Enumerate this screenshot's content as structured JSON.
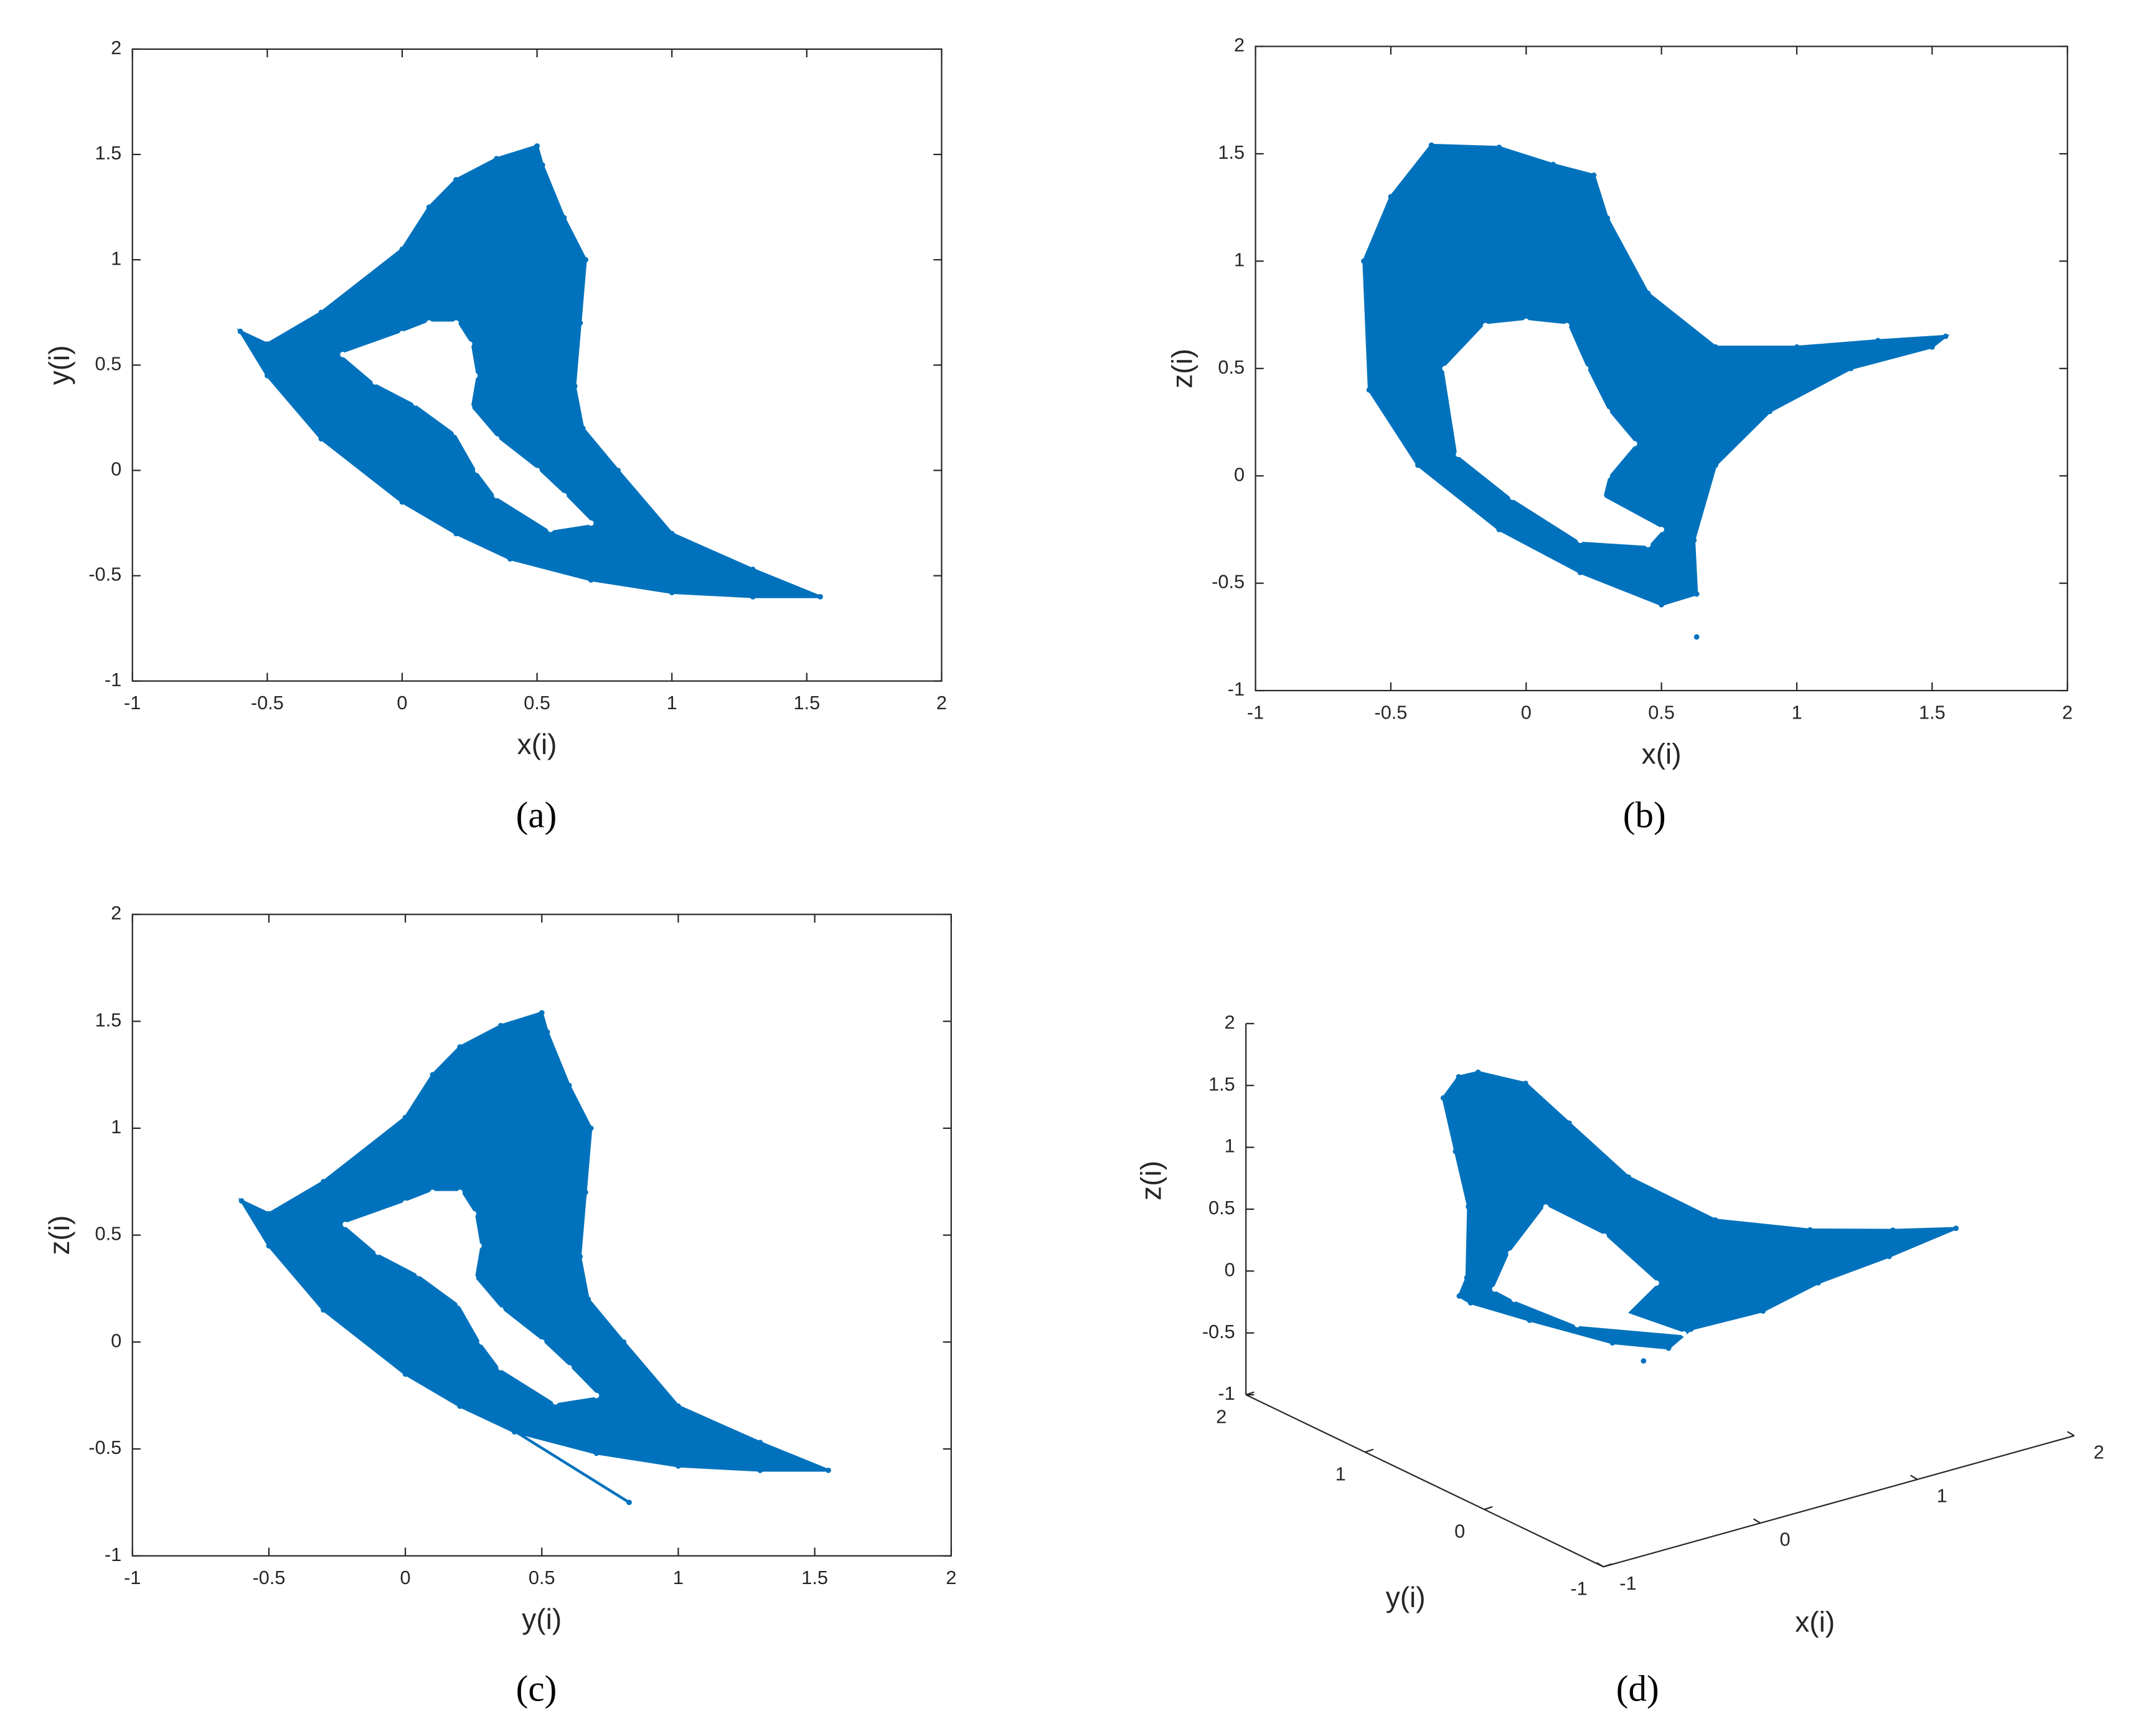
{
  "chart_data": [
    {
      "type": "scatter",
      "caption": "(a)",
      "xlabel": "x(i)",
      "ylabel": "y(i)",
      "xlim": [
        -1,
        2
      ],
      "ylim": [
        -1,
        2
      ],
      "xticks": [
        -1,
        -0.5,
        0,
        0.5,
        1,
        1.5,
        2
      ],
      "yticks": [
        -1,
        -0.5,
        0,
        0.5,
        1,
        1.5,
        2
      ],
      "series": [
        {
          "color": "#0072bd",
          "x": [
            -0.6,
            -0.5,
            -0.3,
            0,
            0.1,
            0.2,
            0.35,
            0.5,
            0.52,
            0.6,
            0.68,
            0.66,
            0.64,
            0.67,
            0.8,
            1.0,
            1.3,
            1.55,
            1.3,
            1.0,
            0.7,
            0.4,
            0.2,
            0,
            -0.3,
            -0.5
          ],
          "y": [
            0.66,
            0.6,
            0.75,
            1.05,
            1.25,
            1.38,
            1.48,
            1.54,
            1.45,
            1.2,
            1.0,
            0.7,
            0.4,
            0.2,
            0,
            -0.3,
            -0.47,
            -0.6,
            -0.6,
            -0.58,
            -0.52,
            -0.42,
            -0.3,
            -0.15,
            0.15,
            0.45
          ]
        },
        {
          "color": "#ffffff",
          "x": [
            -0.22,
            0,
            0.1,
            0.2,
            0.25,
            0.27,
            0.25,
            0.35,
            0.5,
            0.6,
            0.7,
            0.55,
            0.35,
            0.28,
            0.2,
            0.05,
            -0.1
          ],
          "y": [
            0.55,
            0.65,
            0.7,
            0.7,
            0.6,
            0.45,
            0.3,
            0.15,
            0,
            -0.12,
            -0.25,
            -0.28,
            -0.12,
            0,
            0.18,
            0.32,
            0.42
          ]
        },
        {
          "color": "#0072bd",
          "x": [
            0.09
          ],
          "y": [
            -0.17
          ]
        }
      ]
    },
    {
      "type": "scatter",
      "caption": "(b)",
      "xlabel": "x(i)",
      "ylabel": "z(i)",
      "xlim": [
        -1,
        2
      ],
      "ylim": [
        -1,
        2
      ],
      "xticks": [
        -1,
        -0.5,
        0,
        0.5,
        1,
        1.5,
        2
      ],
      "yticks": [
        -1,
        -0.5,
        0,
        0.5,
        1,
        1.5,
        2
      ],
      "series": [
        {
          "color": "#0072bd",
          "x": [
            -0.6,
            -0.5,
            -0.35,
            -0.1,
            0.1,
            0.25,
            0.3,
            0.45,
            0.7,
            1.0,
            1.3,
            1.55,
            1.5,
            1.2,
            0.9,
            0.7,
            0.62,
            0.63,
            0.5,
            0.2,
            -0.1,
            -0.4,
            -0.58
          ],
          "y": [
            1.0,
            1.3,
            1.54,
            1.53,
            1.45,
            1.4,
            1.2,
            0.85,
            0.6,
            0.6,
            0.63,
            0.65,
            0.6,
            0.5,
            0.3,
            0.05,
            -0.3,
            -0.55,
            -0.6,
            -0.45,
            -0.25,
            0.05,
            0.4
          ]
        },
        {
          "color": "#ffffff",
          "x": [
            -0.3,
            -0.15,
            0,
            0.15,
            0.22,
            0.3,
            0.4,
            0.3,
            0.28,
            0.5,
            0.45,
            0.2,
            -0.05,
            -0.25
          ],
          "y": [
            0.5,
            0.7,
            0.72,
            0.7,
            0.5,
            0.3,
            0.15,
            0,
            -0.1,
            -0.25,
            -0.32,
            -0.3,
            -0.1,
            0.1
          ]
        },
        {
          "color": "#0072bd",
          "x": [
            0.63
          ],
          "y": [
            -0.75
          ]
        }
      ]
    },
    {
      "type": "scatter",
      "caption": "(c)",
      "xlabel": "y(i)",
      "ylabel": "z(i)",
      "xlim": [
        -1,
        2
      ],
      "ylim": [
        -1,
        2
      ],
      "xticks": [
        -1,
        -0.5,
        0,
        0.5,
        1,
        1.5,
        2
      ],
      "yticks": [
        -1,
        -0.5,
        0,
        0.5,
        1,
        1.5,
        2
      ],
      "series": [
        {
          "color": "#0072bd",
          "x": [
            -0.6,
            -0.5,
            -0.3,
            0,
            0.1,
            0.2,
            0.35,
            0.5,
            0.52,
            0.6,
            0.68,
            0.66,
            0.64,
            0.67,
            0.8,
            1.0,
            1.3,
            1.55,
            1.3,
            1.0,
            0.7,
            0.4,
            0.2,
            0,
            -0.3,
            -0.5
          ],
          "y": [
            0.66,
            0.6,
            0.75,
            1.05,
            1.25,
            1.38,
            1.48,
            1.54,
            1.45,
            1.2,
            1.0,
            0.7,
            0.4,
            0.2,
            0,
            -0.3,
            -0.47,
            -0.6,
            -0.6,
            -0.58,
            -0.52,
            -0.42,
            -0.3,
            -0.15,
            0.15,
            0.45
          ]
        },
        {
          "color": "#ffffff",
          "x": [
            -0.22,
            0,
            0.1,
            0.2,
            0.25,
            0.27,
            0.25,
            0.35,
            0.5,
            0.6,
            0.7,
            0.55,
            0.35,
            0.28,
            0.2,
            0.05,
            -0.1
          ],
          "y": [
            0.55,
            0.65,
            0.7,
            0.7,
            0.6,
            0.45,
            0.3,
            0.15,
            0,
            -0.12,
            -0.25,
            -0.28,
            -0.12,
            0,
            0.18,
            0.32,
            0.42
          ]
        },
        {
          "color": "#0072bd",
          "x": [
            0.09,
            0.82
          ],
          "y": [
            -0.17,
            -0.75
          ]
        }
      ]
    },
    {
      "type": "scatter3d",
      "caption": "(d)",
      "xlabel": "x(i)",
      "ylabel": "y(i)",
      "zlabel": "z(i)",
      "xlim": [
        -1,
        2
      ],
      "ylim": [
        -1,
        2
      ],
      "zlim": [
        -1,
        2
      ],
      "xticks": [
        -1,
        0,
        1,
        2
      ],
      "yticks": [
        -1,
        0,
        1,
        2
      ],
      "zticks": [
        -1,
        -0.5,
        0,
        0.5,
        1,
        1.5,
        2
      ],
      "series": [
        {
          "color": "#0072bd",
          "x": [
            -0.6,
            -0.5,
            -0.35,
            -0.1,
            0.1,
            0.25,
            0.3,
            0.45,
            0.7,
            1.0,
            1.3,
            1.55,
            1.2,
            0.9,
            0.7,
            0.62,
            0.63,
            0.5,
            0.2,
            -0.1,
            -0.4,
            -0.58
          ],
          "y": [
            0.66,
            0.9,
            1.2,
            1.4,
            1.5,
            1.3,
            1.0,
            0.7,
            0.3,
            -0.1,
            -0.4,
            -0.6,
            -0.5,
            -0.3,
            -0.1,
            0.4,
            0.6,
            0.9,
            1.2,
            1.3,
            1.0,
            0.7
          ],
          "z": [
            1.0,
            1.3,
            1.54,
            1.53,
            1.45,
            1.4,
            1.2,
            0.85,
            0.6,
            0.6,
            0.63,
            0.65,
            0.5,
            0.3,
            0.05,
            -0.3,
            -0.55,
            -0.6,
            -0.45,
            -0.25,
            0.05,
            0.4
          ]
        },
        {
          "color": "#ffffff",
          "x": [
            -0.3,
            0,
            0.22,
            0.4,
            0.28,
            0.5,
            0.2,
            -0.05,
            -0.25
          ],
          "y": [
            0.7,
            0.8,
            0.6,
            0.4,
            0.5,
            0.3,
            0.8,
            1.0,
            0.9
          ],
          "z": [
            0.5,
            0.72,
            0.5,
            0.15,
            -0.1,
            -0.25,
            -0.3,
            -0.1,
            0.1
          ]
        },
        {
          "color": "#0072bd",
          "x": [
            0.63
          ],
          "y": [
            0.81
          ],
          "z": [
            -0.75
          ]
        }
      ]
    }
  ]
}
